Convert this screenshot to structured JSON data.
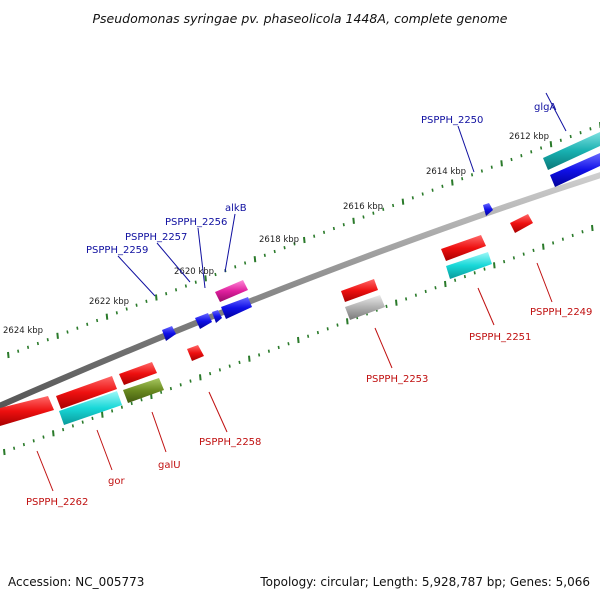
{
  "title": "Pseudomonas syringae pv. phaseolicola 1448A, complete genome",
  "footer": {
    "accession": "Accession: NC_005773",
    "topology": "Topology: circular; Length: 5,928,787 bp; Genes: 5,066"
  },
  "colors": {
    "backbone": "#8a8a8a",
    "tick": "#2a7a2a",
    "forward_label": "#1010a0",
    "reverse_label": "#c01010"
  },
  "chart_data": {
    "type": "genome_map",
    "topology": "circular",
    "ticks": [
      {
        "label": "2612 kbp",
        "kbp": 2612
      },
      {
        "label": "2614 kbp",
        "kbp": 2614
      },
      {
        "label": "2616 kbp",
        "kbp": 2616
      },
      {
        "label": "2618 kbp",
        "kbp": 2618
      },
      {
        "label": "2620 kbp",
        "kbp": 2620
      },
      {
        "label": "2622 kbp",
        "kbp": 2622
      },
      {
        "label": "2624 kbp",
        "kbp": 2624
      }
    ],
    "genes": [
      {
        "name": "glgA",
        "strand": "+",
        "color": "#18b8b8"
      },
      {
        "name": "PSPPH_2250",
        "strand": "+",
        "color": "#1818e0"
      },
      {
        "name": "alkB",
        "strand": "+",
        "color": "#e020a0"
      },
      {
        "name": "PSPPH_2256",
        "strand": "+",
        "color": "#1818e0"
      },
      {
        "name": "PSPPH_2257",
        "strand": "+",
        "color": "#1818e0"
      },
      {
        "name": "PSPPH_2259",
        "strand": "+",
        "color": "#1818e0"
      },
      {
        "name": "PSPPH_2249",
        "strand": "-",
        "color": "#e81818"
      },
      {
        "name": "PSPPH_2251",
        "strand": "-",
        "color": "#e81818"
      },
      {
        "name": "PSPPH_2253",
        "strand": "-",
        "color": "#a8a8a8"
      },
      {
        "name": "PSPPH_2258",
        "strand": "-",
        "color": "#e81818"
      },
      {
        "name": "galU",
        "strand": "-",
        "color": "#6a8a20"
      },
      {
        "name": "gor",
        "strand": "-",
        "color": "#18d8d8"
      },
      {
        "name": "PSPPH_2262",
        "strand": "-",
        "color": "#e81818"
      }
    ]
  }
}
